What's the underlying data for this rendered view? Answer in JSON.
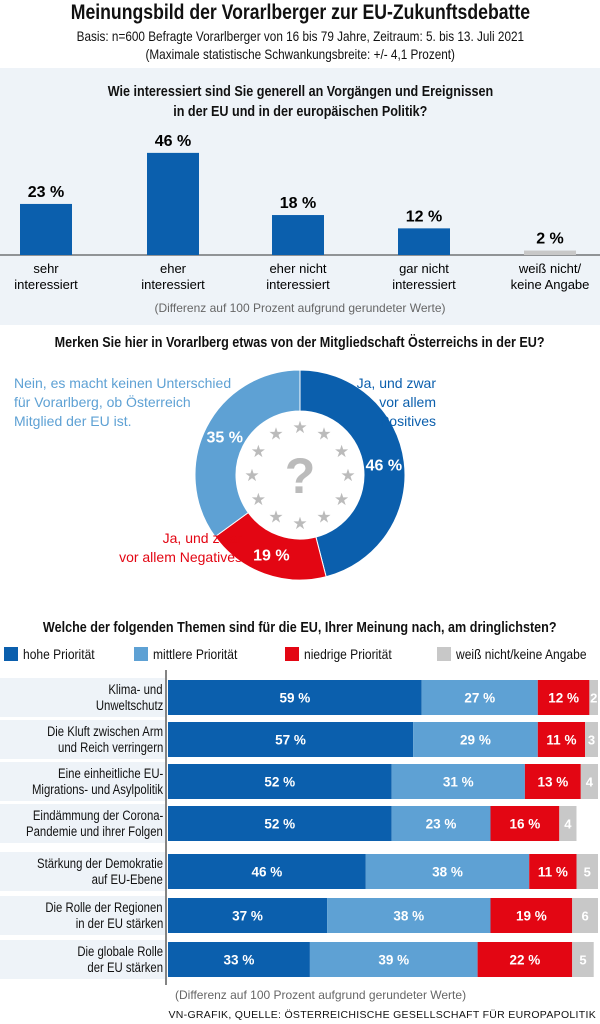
{
  "header": {
    "title": "Meinungsbild der Vorarlberger zur EU-Zukunftsdebatte",
    "basis": "Basis: n=600 Befragte Vorarlberger von 16 bis 79 Jahre, Zeitraum: 5. bis 13. Juli 2021",
    "margin": "(Maximale statistische Schwankungsbreite: +/- 4,1 Prozent)"
  },
  "colors": {
    "high": "#0b5fad",
    "mid": "#5ea1d4",
    "low": "#e30613",
    "unknown": "#c8c8c8",
    "panel": "#eef3f8"
  },
  "chart_data": [
    {
      "type": "bar",
      "title": "Wie interessiert Sind Sie generell an Vorgängen und Ereignissen in der EU und in der europäischen Politik?",
      "title_lines": [
        "Wie interessiert sind Sie generell an Vorgängen und Ereignissen",
        "in der EU und in der europäischen Politik?"
      ],
      "categories": [
        [
          "sehr",
          "interessiert"
        ],
        [
          "eher",
          "interessiert"
        ],
        [
          "eher nicht",
          "interessiert"
        ],
        [
          "gar nicht",
          "interessiert"
        ],
        [
          "weiß nicht/",
          "keine Angabe"
        ]
      ],
      "values": [
        23,
        46,
        18,
        12,
        2
      ],
      "labels": [
        "23 %",
        "46 %",
        "18 %",
        "12 %",
        "2 %"
      ],
      "note": "(Differenz auf 100 Prozent aufgrund gerundeter Werte)"
    },
    {
      "type": "pie",
      "title": "Merken Sie hier in Vorarlberg etwas von der Mitgliedschaft Österreichs in der EU?",
      "slices": [
        {
          "label_lines": [
            "Ja, und zwar",
            "vor allem",
            "Positives"
          ],
          "value": 46,
          "label": "46 %",
          "color": "#0b5fad"
        },
        {
          "label_lines": [
            "Ja, und zwar",
            "vor allem Negatives"
          ],
          "value": 19,
          "label": "19 %",
          "color": "#e30613"
        },
        {
          "label_lines": [
            "Nein, es macht keinen Unterschied",
            "für Vorarlberg, ob Österreich",
            "Mitglied der EU ist."
          ],
          "value": 35,
          "label": "35 %",
          "color": "#5ea1d4"
        }
      ],
      "center_icon": "eu-stars-question-icon"
    },
    {
      "type": "bar",
      "stacked": true,
      "orientation": "horizontal",
      "title": "Welche der folgenden Themen sind für die EU, Ihrer Meinung nach, am dringlichsten?",
      "legend": [
        "hohe Priorität",
        "mittlere Priorität",
        "niedrige Priorität",
        "weiß nicht/keine Angabe"
      ],
      "categories": [
        [
          "Klima- und",
          "Unweltschutz"
        ],
        [
          "Die Kluft zwischen Arm",
          "und Reich verringern"
        ],
        [
          "Eine einheitliche EU-",
          "Migrations- und Asylpolitik"
        ],
        [
          "Eindämmung der Corona-",
          "Pandemie und ihrer Folgen"
        ],
        [
          "Stärkung der Demokratie",
          "auf EU-Ebene"
        ],
        [
          "Die Rolle der Regionen",
          "in der EU stärken"
        ],
        [
          "Die globale Rolle",
          "der EU stärken"
        ]
      ],
      "series": [
        {
          "name": "hohe Priorität",
          "values": [
            59,
            57,
            52,
            52,
            46,
            37,
            33
          ]
        },
        {
          "name": "mittlere Priorität",
          "values": [
            27,
            29,
            31,
            23,
            38,
            38,
            39
          ]
        },
        {
          "name": "niedrige Priorität",
          "values": [
            12,
            11,
            13,
            16,
            11,
            19,
            22
          ]
        },
        {
          "name": "weiß nicht/keine Angabe",
          "values": [
            2,
            3,
            4,
            4,
            5,
            6,
            5
          ]
        }
      ],
      "note": "(Differenz auf 100 Prozent aufgrund gerundeter Werte)"
    }
  ],
  "footer": {
    "source": "VN-GRAFIK, QUELLE: ÖSTERREICHISCHE GESELLSCHAFT FÜR EUROPAPOLITIK"
  }
}
